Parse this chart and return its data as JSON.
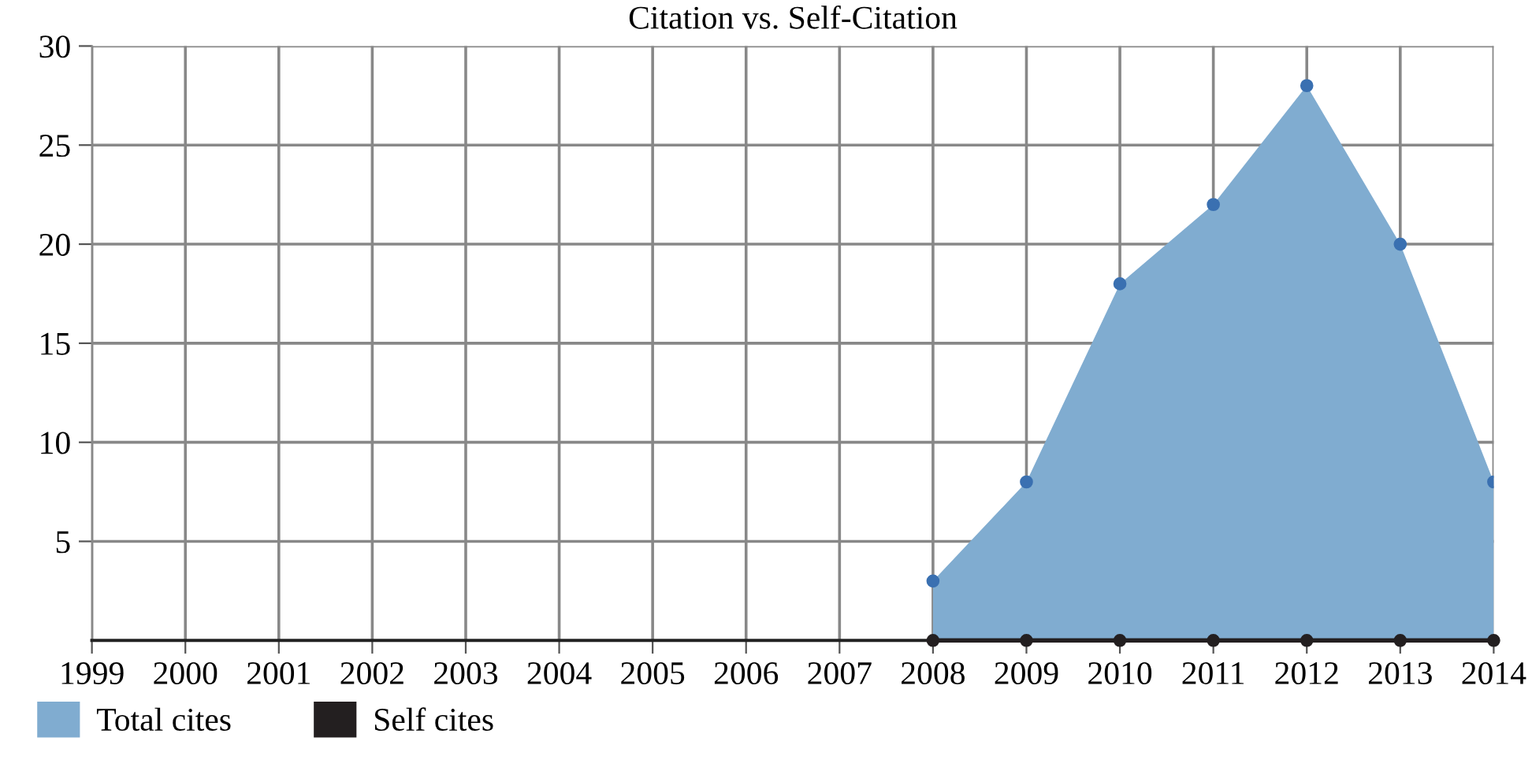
{
  "chart_data": {
    "type": "area",
    "title": "Citation vs. Self-Citation",
    "x": [
      2008,
      2009,
      2010,
      2011,
      2012,
      2013,
      2014
    ],
    "series": [
      {
        "name": "Total cites",
        "color": "#80acd0",
        "values": [
          3,
          8,
          18,
          22,
          28,
          20,
          8
        ]
      },
      {
        "name": "Self cites",
        "color": "#231f20",
        "type": "line",
        "values": [
          0,
          0,
          0,
          0,
          0,
          0,
          0
        ]
      }
    ],
    "xlim": [
      1999,
      2014
    ],
    "xticks": [
      1999,
      2000,
      2001,
      2002,
      2003,
      2004,
      2005,
      2006,
      2007,
      2008,
      2009,
      2010,
      2011,
      2012,
      2013,
      2014
    ],
    "ylim": [
      0,
      30
    ],
    "yticks": [
      5,
      10,
      15,
      20,
      25,
      30
    ],
    "grid": true,
    "legend": "bottom left",
    "marker": "circle"
  }
}
